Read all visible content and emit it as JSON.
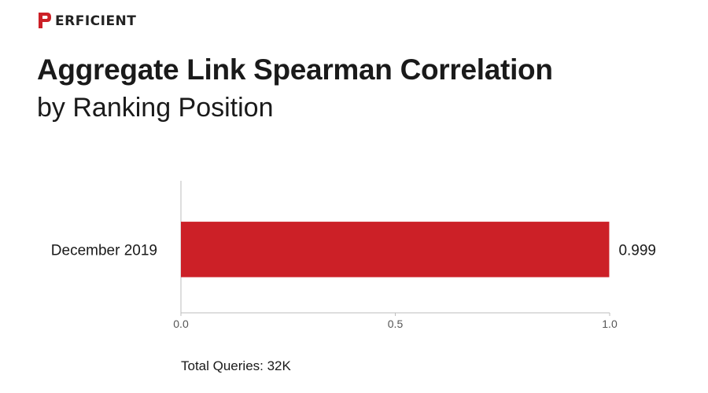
{
  "brand": {
    "logo_text": "ERFICIENT",
    "accent_color": "#cc2027"
  },
  "header": {
    "title": "Aggregate Link Spearman Correlation",
    "subtitle": "by Ranking Position"
  },
  "chart_data": {
    "type": "bar",
    "orientation": "horizontal",
    "categories": [
      "December 2019"
    ],
    "values": [
      0.999
    ],
    "value_labels": [
      "0.999"
    ],
    "xlim": [
      0,
      1
    ],
    "xticks": [
      0,
      0.5,
      1
    ],
    "xtick_labels": [
      "0.0",
      "0.5",
      "1.0"
    ],
    "bar_color": "#cc2027",
    "grid": false
  },
  "footer": {
    "note": "Total Queries: 32K"
  }
}
